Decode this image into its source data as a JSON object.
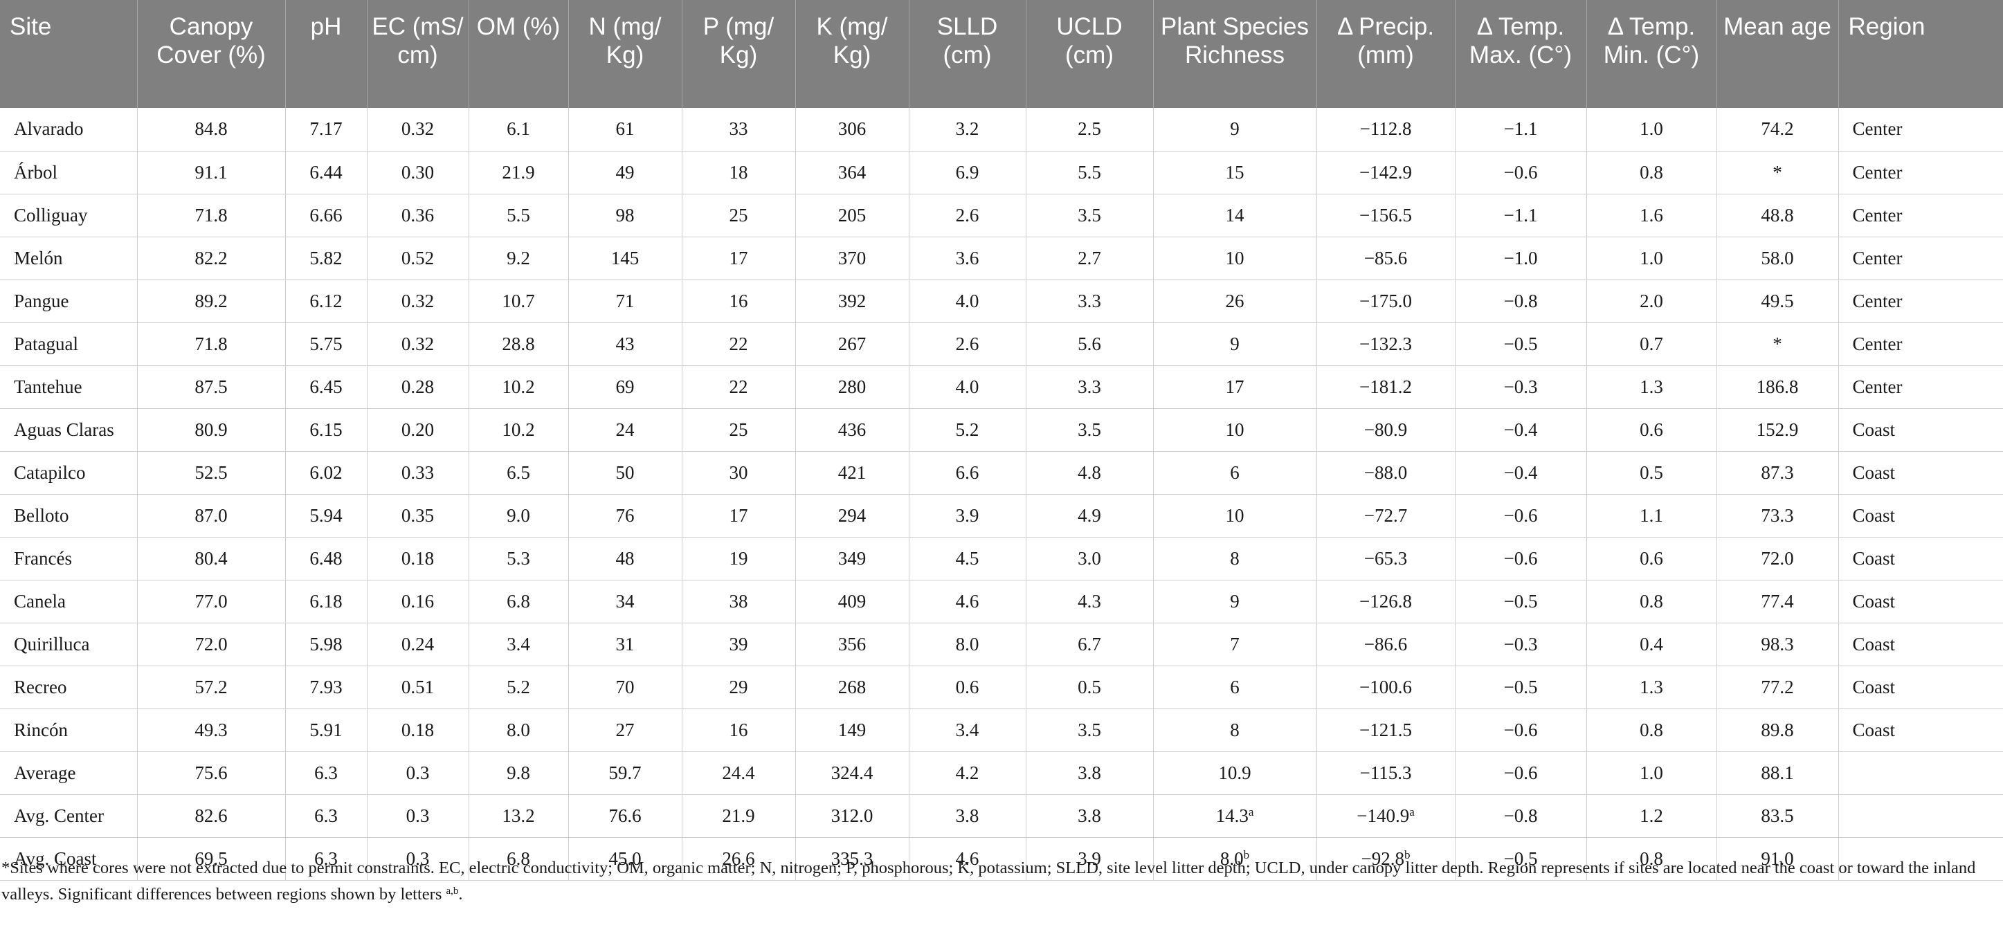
{
  "table": {
    "headers": [
      "Site",
      "Canopy Cover (%)",
      "pH",
      "EC (mS/ cm)",
      "OM (%)",
      "N (mg/ Kg)",
      "P (mg/ Kg)",
      "K (mg/ Kg)",
      "SLLD (cm)",
      "UCLD (cm)",
      "Plant Species Richness",
      "Δ Precip. (mm)",
      "Δ Temp. Max. (C°)",
      "Δ Temp. Min. (C°)",
      "Mean age",
      "Region"
    ],
    "rows": [
      [
        "Alvarado",
        "84.8",
        "7.17",
        "0.32",
        "6.1",
        "61",
        "33",
        "306",
        "3.2",
        "2.5",
        "9",
        "−112.8",
        "−1.1",
        "1.0",
        "74.2",
        "Center"
      ],
      [
        "Árbol",
        "91.1",
        "6.44",
        "0.30",
        "21.9",
        "49",
        "18",
        "364",
        "6.9",
        "5.5",
        "15",
        "−142.9",
        "−0.6",
        "0.8",
        "*",
        "Center"
      ],
      [
        "Colliguay",
        "71.8",
        "6.66",
        "0.36",
        "5.5",
        "98",
        "25",
        "205",
        "2.6",
        "3.5",
        "14",
        "−156.5",
        "−1.1",
        "1.6",
        "48.8",
        "Center"
      ],
      [
        "Melón",
        "82.2",
        "5.82",
        "0.52",
        "9.2",
        "145",
        "17",
        "370",
        "3.6",
        "2.7",
        "10",
        "−85.6",
        "−1.0",
        "1.0",
        "58.0",
        "Center"
      ],
      [
        "Pangue",
        "89.2",
        "6.12",
        "0.32",
        "10.7",
        "71",
        "16",
        "392",
        "4.0",
        "3.3",
        "26",
        "−175.0",
        "−0.8",
        "2.0",
        "49.5",
        "Center"
      ],
      [
        "Patagual",
        "71.8",
        "5.75",
        "0.32",
        "28.8",
        "43",
        "22",
        "267",
        "2.6",
        "5.6",
        "9",
        "−132.3",
        "−0.5",
        "0.7",
        "*",
        "Center"
      ],
      [
        "Tantehue",
        "87.5",
        "6.45",
        "0.28",
        "10.2",
        "69",
        "22",
        "280",
        "4.0",
        "3.3",
        "17",
        "−181.2",
        "−0.3",
        "1.3",
        "186.8",
        "Center"
      ],
      [
        "Aguas Claras",
        "80.9",
        "6.15",
        "0.20",
        "10.2",
        "24",
        "25",
        "436",
        "5.2",
        "3.5",
        "10",
        "−80.9",
        "−0.4",
        "0.6",
        "152.9",
        "Coast"
      ],
      [
        "Catapilco",
        "52.5",
        "6.02",
        "0.33",
        "6.5",
        "50",
        "30",
        "421",
        "6.6",
        "4.8",
        "6",
        "−88.0",
        "−0.4",
        "0.5",
        "87.3",
        "Coast"
      ],
      [
        "Belloto",
        "87.0",
        "5.94",
        "0.35",
        "9.0",
        "76",
        "17",
        "294",
        "3.9",
        "4.9",
        "10",
        "−72.7",
        "−0.6",
        "1.1",
        "73.3",
        "Coast"
      ],
      [
        "Francés",
        "80.4",
        "6.48",
        "0.18",
        "5.3",
        "48",
        "19",
        "349",
        "4.5",
        "3.0",
        "8",
        "−65.3",
        "−0.6",
        "0.6",
        "72.0",
        "Coast"
      ],
      [
        "Canela",
        "77.0",
        "6.18",
        "0.16",
        "6.8",
        "34",
        "38",
        "409",
        "4.6",
        "4.3",
        "9",
        "−126.8",
        "−0.5",
        "0.8",
        "77.4",
        "Coast"
      ],
      [
        "Quirilluca",
        "72.0",
        "5.98",
        "0.24",
        "3.4",
        "31",
        "39",
        "356",
        "8.0",
        "6.7",
        "7",
        "−86.6",
        "−0.3",
        "0.4",
        "98.3",
        "Coast"
      ],
      [
        "Recreo",
        "57.2",
        "7.93",
        "0.51",
        "5.2",
        "70",
        "29",
        "268",
        "0.6",
        "0.5",
        "6",
        "−100.6",
        "−0.5",
        "1.3",
        "77.2",
        "Coast"
      ],
      [
        "Rincón",
        "49.3",
        "5.91",
        "0.18",
        "8.0",
        "27",
        "16",
        "149",
        "3.4",
        "3.5",
        "8",
        "−121.5",
        "−0.6",
        "0.8",
        "89.8",
        "Coast"
      ],
      [
        "Average",
        "75.6",
        "6.3",
        "0.3",
        "9.8",
        "59.7",
        "24.4",
        "324.4",
        "4.2",
        "3.8",
        "10.9",
        "−115.3",
        "−0.6",
        "1.0",
        "88.1",
        ""
      ],
      [
        "Avg. Center",
        "82.6",
        "6.3",
        "0.3",
        "13.2",
        "76.6",
        "21.9",
        "312.0",
        "3.8",
        "3.8",
        "14.3",
        "−140.9",
        "−0.8",
        "1.2",
        "83.5",
        ""
      ],
      [
        "Avg. Coast",
        "69.5",
        "6.3",
        "0.3",
        "6.8",
        "45.0",
        "26.6",
        "335.3",
        "4.6",
        "3.9",
        "8.0",
        "−92.8",
        "−0.5",
        "0.8",
        "91.0",
        ""
      ]
    ],
    "superscripts": {
      "avg_center_richness": "a",
      "avg_center_precip": "a",
      "avg_coast_richness": "b",
      "avg_coast_precip": "b"
    }
  },
  "footnote": {
    "text": "*Sites where cores were not extracted due to permit constraints. EC, electric conductivity; OM, organic matter; N, nitrogen; P, phosphorous; K, potassium; SLLD, site level litter depth; UCLD, under canopy litter depth. Region represents if sites are located near the coast or toward the inland valleys. Significant differences between regions shown by letters ",
    "letters": "a,b",
    "end": "."
  }
}
